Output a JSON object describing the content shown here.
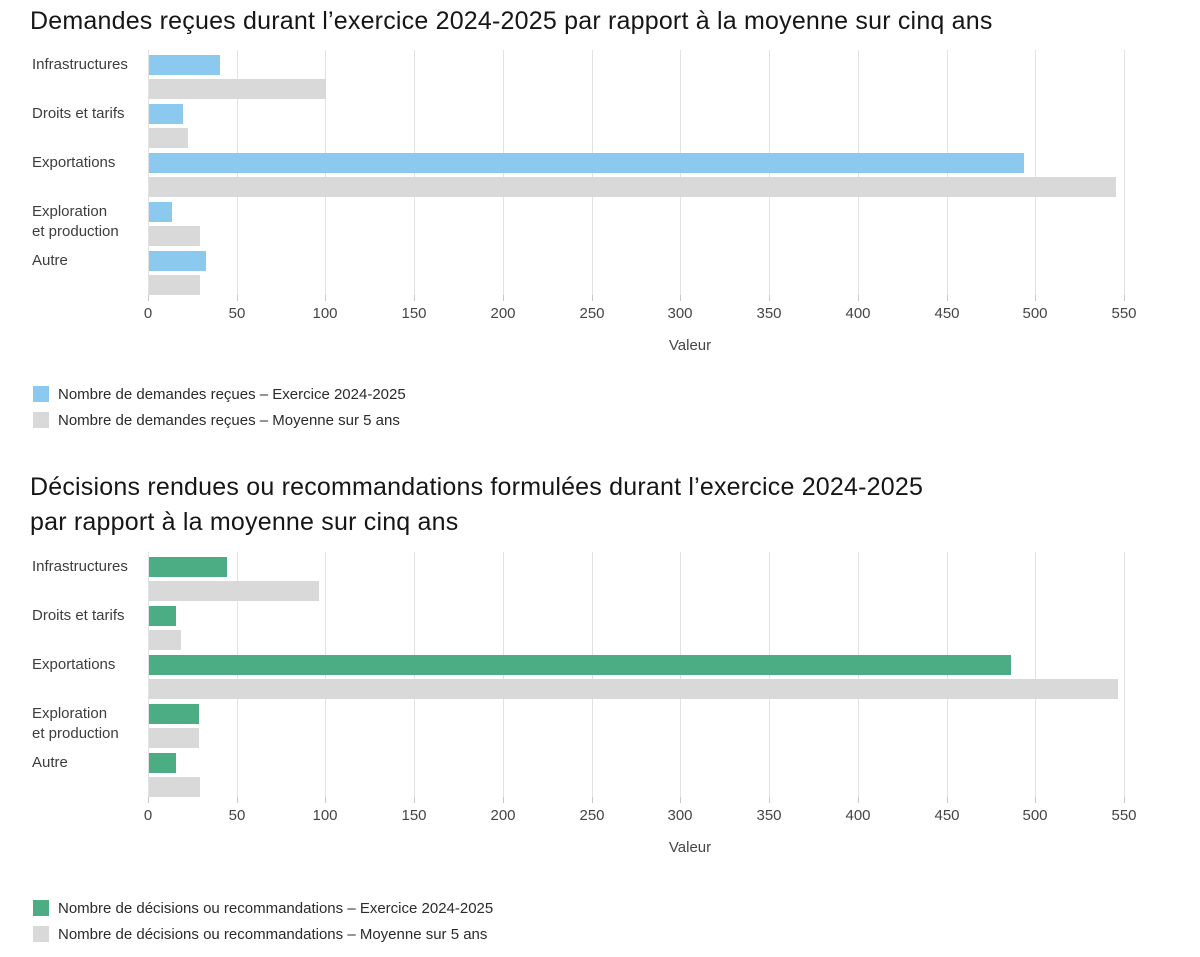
{
  "page": {
    "background": "#FFFFFF"
  },
  "colors": {
    "grid": "#E2E2E2",
    "tick_mark": "#C9C9C9",
    "axis_text": "#454545",
    "category_text": "#3D3D3D",
    "title_text": "#161616",
    "legend_text": "#2B2B2B",
    "series_blue": "#8BCAEE",
    "series_green": "#4CAC84",
    "series_gray": "#D9D9D9"
  },
  "chart_data": [
    {
      "type": "bar",
      "orientation": "horizontal",
      "title": "Demandes reçues durant l’exercice 2024-2025 par rapport à la moyenne sur cinq ans",
      "title_lines": [
        "Demandes reçues durant l’exercice 2024-2025 par rapport à la moyenne sur cinq ans"
      ],
      "categories": [
        "Infrastructures",
        "Droits et tarifs",
        "Exportations",
        "Exploration\net production",
        "Autre"
      ],
      "series": [
        {
          "name": "Nombre de demandes reçues – Exercice 2024-2025",
          "color": "#8BCAEE",
          "values": [
            40,
            19,
            493,
            13,
            32
          ]
        },
        {
          "name": "Nombre de demandes reçues – Moyenne sur 5 ans",
          "color": "#D9D9D9",
          "values": [
            100,
            22,
            545,
            29,
            29
          ]
        }
      ],
      "xlabel": "Valeur",
      "xlim": [
        0,
        550
      ],
      "xticks": [
        0,
        50,
        100,
        150,
        200,
        250,
        300,
        350,
        400,
        450,
        500,
        550
      ],
      "grid": true,
      "legend_position": "bottom-left"
    },
    {
      "type": "bar",
      "orientation": "horizontal",
      "title": "Décisions rendues ou recommandations formulées durant l’exercice 2024-2025 par rapport à la moyenne sur cinq ans",
      "title_lines": [
        "Décisions rendues ou recommandations formulées durant l’exercice 2024-2025",
        "par rapport à la moyenne sur cinq ans"
      ],
      "categories": [
        "Infrastructures",
        "Droits et tarifs",
        "Exportations",
        "Exploration\net production",
        "Autre"
      ],
      "series": [
        {
          "name": "Nombre de décisions ou recommandations – Exercice 2024-2025",
          "color": "#4CAC84",
          "values": [
            44,
            15,
            486,
            28,
            15
          ]
        },
        {
          "name": "Nombre de décisions ou recommandations – Moyenne sur 5 ans",
          "color": "#D9D9D9",
          "values": [
            96,
            18,
            546,
            28,
            29
          ]
        }
      ],
      "xlabel": "Valeur",
      "xlim": [
        0,
        550
      ],
      "xticks": [
        0,
        50,
        100,
        150,
        200,
        250,
        300,
        350,
        400,
        450,
        500,
        550
      ],
      "grid": true,
      "legend_position": "bottom-left"
    }
  ]
}
